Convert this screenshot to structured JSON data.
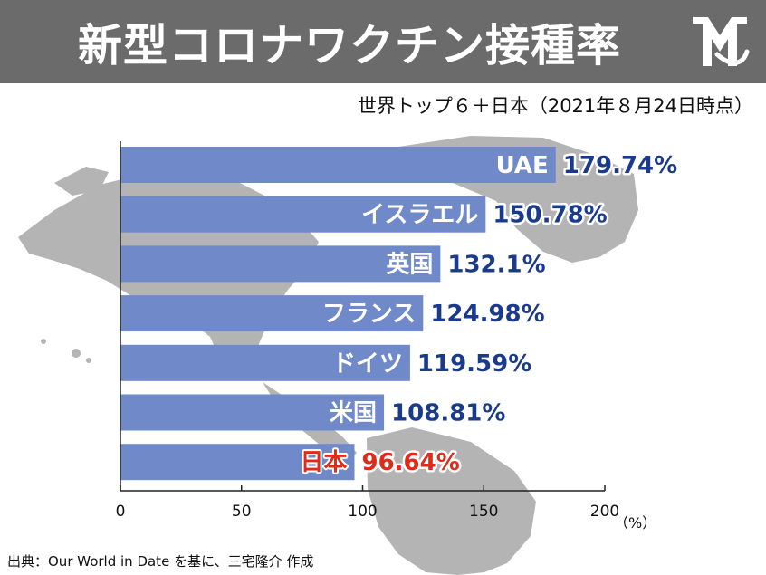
{
  "header": {
    "title": "新型コロナワクチン接種率"
  },
  "subtitle": "世界トップ６＋日本（2021年８月24日時点）",
  "source": "出典：Our World in Date を基に、三宅隆介 作成",
  "colors": {
    "header_bg": "#6b6b6b",
    "bar_fill": "#7089c9",
    "value_label": "#1a3a8c",
    "japan_highlight": "#e02a1a",
    "map_land": "#b4b4b4",
    "text_white": "#ffffff"
  },
  "chart_data": {
    "type": "bar",
    "orientation": "horizontal",
    "categories": [
      "UAE",
      "イスラエル",
      "英国",
      "フランス",
      "ドイツ",
      "米国",
      "日本"
    ],
    "values": [
      179.74,
      150.78,
      132.1,
      124.98,
      119.59,
      108.81,
      96.64
    ],
    "value_labels": [
      "179.74%",
      "150.78%",
      "132.1%",
      "124.98%",
      "119.59%",
      "108.81%",
      "96.64%"
    ],
    "highlight": [
      false,
      false,
      false,
      false,
      false,
      false,
      true
    ],
    "xlim": [
      0,
      200
    ],
    "x_ticks": [
      0,
      50,
      100,
      150,
      200
    ],
    "x_tick_labels": [
      "0",
      "50",
      "100",
      "150",
      "200"
    ],
    "x_unit": "（%）",
    "grid": false,
    "legend": "none"
  }
}
